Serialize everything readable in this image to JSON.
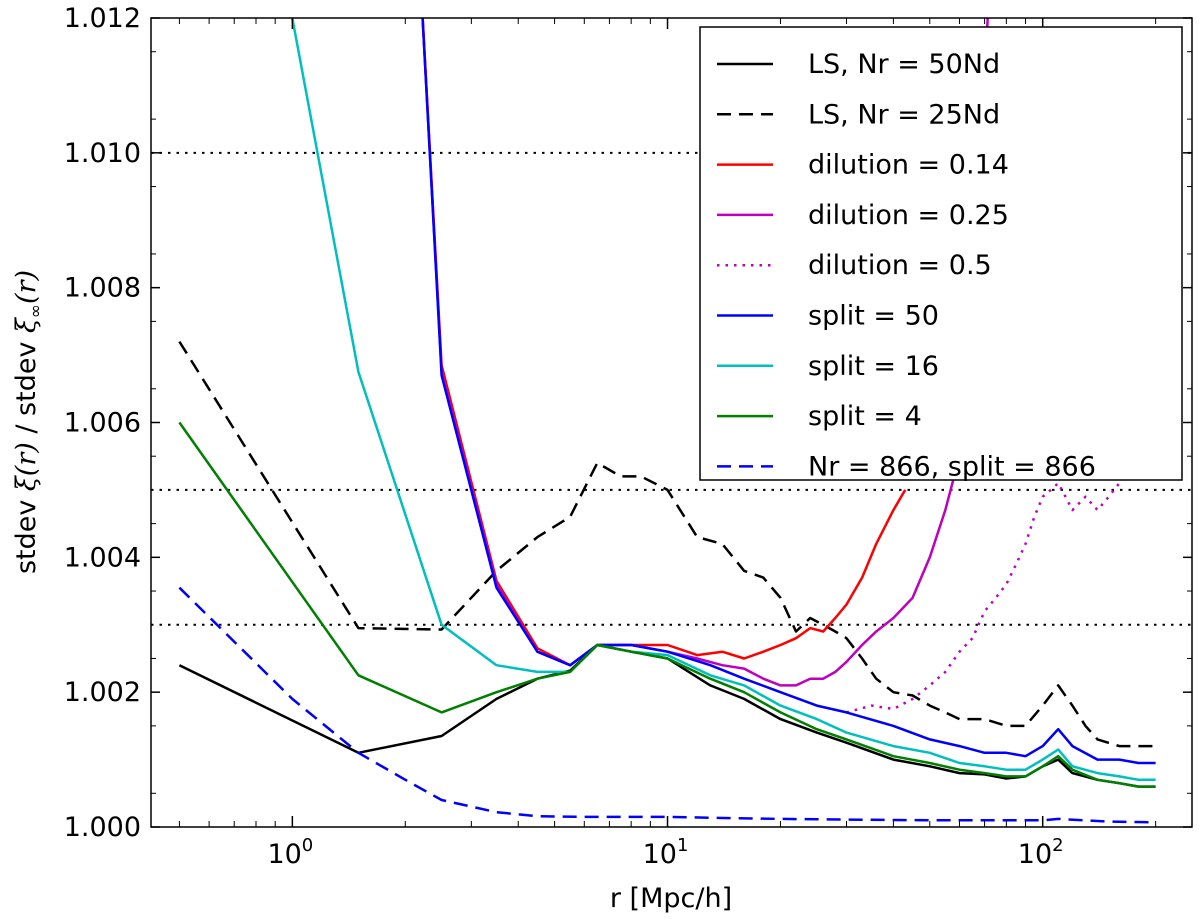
{
  "chart_data": {
    "type": "line",
    "title": "",
    "xlabel": "r [Mpc/h]",
    "ylabel": "stdev ξ(r) / stdev ξ∞(r)",
    "ylabel_parts": {
      "pre": "stdev ",
      "xi": "ξ",
      "xi_arg": "(r)",
      "mid": " / stdev ",
      "xi2": "ξ",
      "inf": "∞",
      "xi2_arg": "(r)"
    },
    "xscale": "log",
    "xlim": [
      0.42,
      250
    ],
    "ylim": [
      1.0,
      1.012
    ],
    "x_ticks": [
      {
        "value": 1,
        "base": "10",
        "exp": "0"
      },
      {
        "value": 10,
        "base": "10",
        "exp": "1"
      },
      {
        "value": 100,
        "base": "10",
        "exp": "2"
      }
    ],
    "y_ticks": [
      {
        "value": 1.0,
        "label": "1.000"
      },
      {
        "value": 1.002,
        "label": "1.002"
      },
      {
        "value": 1.004,
        "label": "1.004"
      },
      {
        "value": 1.006,
        "label": "1.006"
      },
      {
        "value": 1.008,
        "label": "1.008"
      },
      {
        "value": 1.01,
        "label": "1.010"
      },
      {
        "value": 1.012,
        "label": "1.012"
      }
    ],
    "reference_lines": [
      1.003,
      1.005,
      1.01
    ],
    "legend_placement": "top-right",
    "grid": false,
    "series": [
      {
        "name": "LS, Nr = 50Nd",
        "color": "#000000",
        "dash": "solid",
        "x": [
          0.5,
          1.5,
          2.5,
          3.5,
          4.5,
          5.5,
          6.5,
          8,
          10,
          13,
          16,
          20,
          25,
          30,
          40,
          50,
          60,
          70,
          80,
          90,
          100,
          110,
          120,
          140,
          160,
          180,
          200
        ],
        "y": [
          1.0024,
          1.0011,
          1.00135,
          1.0019,
          1.0022,
          1.00232,
          1.0027,
          1.0026,
          1.0025,
          1.0021,
          1.0019,
          1.0016,
          1.0014,
          1.00125,
          1.001,
          1.0009,
          1.0008,
          1.00078,
          1.00072,
          1.00075,
          1.0009,
          1.001,
          1.0008,
          1.0007,
          1.00065,
          1.0006,
          1.0006
        ]
      },
      {
        "name": "LS, Nr = 25Nd",
        "color": "#000000",
        "dash": "dashed",
        "x": [
          0.5,
          1.5,
          2.5,
          3.5,
          4.5,
          5.5,
          6.5,
          7.5,
          8.5,
          10,
          12,
          14,
          16,
          18,
          20,
          22,
          24,
          26,
          28,
          30,
          33,
          36,
          40,
          45,
          50,
          55,
          60,
          70,
          80,
          90,
          100,
          110,
          120,
          130,
          140,
          160,
          180,
          200
        ],
        "y": [
          1.0072,
          1.00295,
          1.00293,
          1.0038,
          1.0043,
          1.0046,
          1.0054,
          1.0052,
          1.0052,
          1.005,
          1.0043,
          1.0042,
          1.0038,
          1.0037,
          1.0034,
          1.0029,
          1.0031,
          1.003,
          1.0029,
          1.0028,
          1.0025,
          1.0022,
          1.002,
          1.00195,
          1.0018,
          1.0017,
          1.0016,
          1.0016,
          1.0015,
          1.0015,
          1.0018,
          1.0021,
          1.0018,
          1.0015,
          1.0013,
          1.0012,
          1.0012,
          1.0012
        ]
      },
      {
        "name": "dilution = 0.14",
        "color": "#ff0000",
        "dash": "solid",
        "x": [
          2.2,
          2.5,
          3.5,
          4.5,
          5.5,
          6.5,
          8,
          10,
          12,
          14,
          16,
          18,
          20,
          22,
          24,
          26,
          28,
          30,
          33,
          36,
          40,
          43
        ],
        "y": [
          1.0125,
          1.00685,
          1.00365,
          1.00265,
          1.0024,
          1.0027,
          1.0027,
          1.0027,
          1.00255,
          1.0026,
          1.0025,
          1.0026,
          1.0027,
          1.0028,
          1.00295,
          1.0029,
          1.0031,
          1.0033,
          1.0037,
          1.0042,
          1.0047,
          1.005
        ]
      },
      {
        "name": "dilution = 0.25",
        "color": "#bf00bf",
        "dash": "solid",
        "x": [
          2.2,
          2.5,
          3.5,
          4.5,
          5.5,
          6.5,
          8,
          10,
          12,
          14,
          16,
          18,
          20,
          22,
          24,
          26,
          28,
          30,
          33,
          36,
          40,
          45,
          50,
          55,
          60,
          65,
          70,
          72
        ],
        "y": [
          1.0125,
          1.00675,
          1.0036,
          1.0026,
          1.0024,
          1.0027,
          1.0027,
          1.0026,
          1.0025,
          1.0024,
          1.00235,
          1.0022,
          1.0021,
          1.0021,
          1.0022,
          1.0022,
          1.0023,
          1.00245,
          1.0027,
          1.0029,
          1.0031,
          1.0034,
          1.004,
          1.0047,
          1.0055,
          1.0065,
          1.011,
          1.0125
        ]
      },
      {
        "name": "dilution = 0.5",
        "color": "#bf00bf",
        "dash": "dotted",
        "x": [
          30,
          35,
          40,
          45,
          50,
          55,
          60,
          65,
          70,
          75,
          80,
          85,
          90,
          95,
          100,
          105,
          110,
          115,
          120,
          130,
          140,
          150,
          160
        ],
        "y": [
          1.0017,
          1.0018,
          1.00175,
          1.0019,
          1.0021,
          1.0023,
          1.0026,
          1.0028,
          1.0032,
          1.0034,
          1.0036,
          1.0039,
          1.0042,
          1.0046,
          1.0049,
          1.005,
          1.0051,
          1.0049,
          1.0047,
          1.0049,
          1.0047,
          1.0049,
          1.0051
        ]
      },
      {
        "name": "split = 50",
        "color": "#0000ff",
        "dash": "solid",
        "x": [
          2.2,
          2.5,
          3.5,
          4.5,
          5.5,
          6.5,
          8,
          10,
          13,
          16,
          20,
          25,
          30,
          40,
          50,
          60,
          70,
          80,
          90,
          100,
          110,
          120,
          140,
          160,
          180,
          200
        ],
        "y": [
          1.0125,
          1.0067,
          1.00355,
          1.0026,
          1.0024,
          1.0027,
          1.0027,
          1.0026,
          1.0024,
          1.0022,
          1.002,
          1.0018,
          1.0017,
          1.0015,
          1.0013,
          1.0012,
          1.0011,
          1.0011,
          1.00105,
          1.0012,
          1.00145,
          1.0012,
          1.001,
          1.001,
          1.00095,
          1.00095
        ]
      },
      {
        "name": "split = 16",
        "color": "#00bfbf",
        "dash": "solid",
        "x": [
          1.0,
          1.5,
          2.5,
          3.5,
          4.5,
          5.5,
          6.5,
          8,
          10,
          13,
          16,
          20,
          25,
          30,
          40,
          50,
          60,
          70,
          80,
          90,
          100,
          110,
          120,
          140,
          160,
          180,
          200
        ],
        "y": [
          1.012,
          1.00675,
          1.003,
          1.0024,
          1.0023,
          1.0023,
          1.0027,
          1.0026,
          1.00255,
          1.00225,
          1.0021,
          1.0018,
          1.0016,
          1.0014,
          1.0012,
          1.0011,
          1.00095,
          1.0009,
          1.00085,
          1.00085,
          1.001,
          1.00115,
          1.0009,
          1.0008,
          1.00075,
          1.0007,
          1.0007
        ]
      },
      {
        "name": "split = 4",
        "color": "#007f00",
        "dash": "solid",
        "x": [
          0.5,
          1.5,
          2.5,
          3.5,
          4.5,
          5.5,
          6.5,
          8,
          10,
          13,
          16,
          20,
          25,
          30,
          40,
          50,
          60,
          70,
          80,
          90,
          100,
          110,
          120,
          140,
          160,
          180,
          200
        ],
        "y": [
          1.006,
          1.00225,
          1.0017,
          1.002,
          1.0022,
          1.0023,
          1.0027,
          1.0026,
          1.0025,
          1.0022,
          1.002,
          1.0017,
          1.00145,
          1.0013,
          1.00105,
          1.00095,
          1.00085,
          1.0008,
          1.00075,
          1.00075,
          1.0009,
          1.00105,
          1.00085,
          1.0007,
          1.00065,
          1.0006,
          1.0006
        ]
      },
      {
        "name": "Nr = 866, split = 866",
        "color": "#0000ff",
        "dash": "dashed",
        "x": [
          0.5,
          1.0,
          1.5,
          2.0,
          2.5,
          3.5,
          4.5,
          6,
          8,
          10,
          15,
          20,
          30,
          50,
          80,
          100,
          110,
          150,
          200
        ],
        "y": [
          1.00355,
          1.0019,
          1.0011,
          1.0007,
          1.0004,
          1.00022,
          1.00016,
          1.00015,
          1.00015,
          1.00015,
          1.00013,
          1.00012,
          1.00011,
          1.0001,
          1.0001,
          1.0001,
          1.00012,
          1.00008,
          1.00007
        ]
      }
    ]
  }
}
